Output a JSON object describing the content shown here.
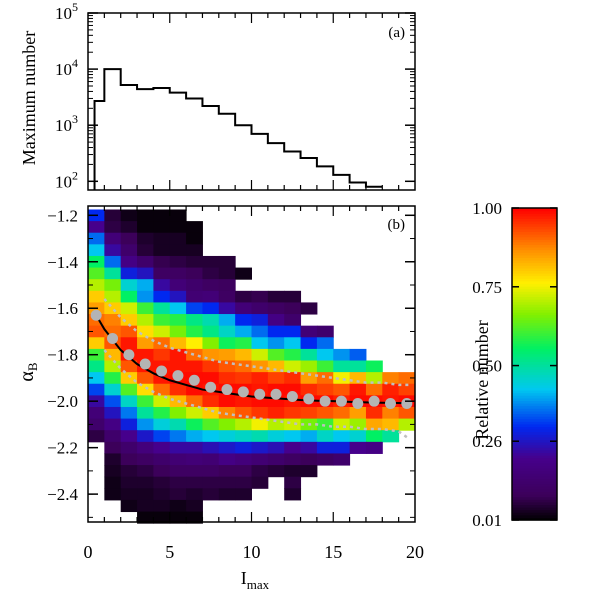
{
  "chart_data": [
    {
      "panel": "(a)",
      "type": "histogram",
      "ylabel": "Maximum number",
      "yscale": "log",
      "ylim": [
        70,
        100000
      ],
      "xlim": [
        0,
        20
      ],
      "yticks": [
        {
          "value": 100,
          "base": "10",
          "exp": "2"
        },
        {
          "value": 1000,
          "base": "10",
          "exp": "3"
        },
        {
          "value": 10000,
          "base": "10",
          "exp": "4"
        },
        {
          "value": 100000,
          "base": "10",
          "exp": "5"
        }
      ],
      "bin_edges": [
        0.4,
        1.0,
        2.0,
        3.0,
        4.0,
        5.0,
        6.0,
        7.0,
        8.0,
        9.0,
        10.0,
        11.0,
        12.0,
        13.0,
        14.0,
        15.0,
        16.0,
        17.0,
        18.0
      ],
      "values": [
        2700,
        10000,
        5200,
        4400,
        4600,
        3800,
        3000,
        2200,
        1600,
        1000,
        700,
        480,
        340,
        260,
        185,
        130,
        95,
        80
      ]
    },
    {
      "panel": "(b)",
      "type": "heatmap",
      "xlabel_main": "I",
      "xlabel_sub": "max",
      "ylabel_main": "α",
      "ylabel_sub": "B",
      "xlim": [
        0,
        20
      ],
      "ylim": [
        -2.52,
        -1.16
      ],
      "xticks": [
        0,
        5,
        10,
        15,
        20
      ],
      "yticks": [
        -1.2,
        -1.4,
        -1.6,
        -1.8,
        -2.0,
        -2.2,
        -2.4
      ],
      "x_centers": [
        0.5,
        1.5,
        2.5,
        3.5,
        4.5,
        5.5,
        6.5,
        7.5,
        8.5,
        9.5,
        10.5,
        11.5,
        12.5,
        13.5,
        14.5,
        15.5,
        16.5,
        17.5,
        18.5,
        19.5
      ],
      "y_centers": [
        -1.2,
        -1.25,
        -1.3,
        -1.35,
        -1.4,
        -1.45,
        -1.5,
        -1.55,
        -1.6,
        -1.65,
        -1.7,
        -1.75,
        -1.8,
        -1.85,
        -1.9,
        -1.95,
        -2.0,
        -2.05,
        -2.1,
        -2.15,
        -2.2,
        -2.25,
        -2.3,
        -2.35,
        -2.4,
        -2.45,
        -2.5
      ],
      "z": [
        [
          0.3,
          0.05,
          0.02,
          0.01,
          0.01,
          0.01,
          null,
          null,
          null,
          null,
          null,
          null,
          null,
          null,
          null,
          null,
          null,
          null,
          null,
          null
        ],
        [
          0.2,
          0.06,
          0.04,
          0.01,
          0.01,
          0.01,
          0.01,
          null,
          null,
          null,
          null,
          null,
          null,
          null,
          null,
          null,
          null,
          null,
          null,
          null
        ],
        [
          0.35,
          0.15,
          0.08,
          0.04,
          0.03,
          0.03,
          0.01,
          null,
          null,
          null,
          null,
          null,
          null,
          null,
          null,
          null,
          null,
          null,
          null,
          null
        ],
        [
          0.42,
          0.22,
          0.12,
          0.05,
          0.03,
          0.03,
          0.03,
          null,
          null,
          null,
          null,
          null,
          null,
          null,
          null,
          null,
          null,
          null,
          null,
          null
        ],
        [
          0.55,
          0.35,
          0.18,
          0.12,
          0.07,
          0.06,
          0.05,
          0.05,
          0.05,
          null,
          null,
          null,
          null,
          null,
          null,
          null,
          null,
          null,
          null,
          null
        ],
        [
          0.62,
          0.5,
          0.28,
          0.25,
          0.1,
          0.1,
          0.08,
          0.06,
          0.05,
          0.02,
          null,
          null,
          null,
          null,
          null,
          null,
          null,
          null,
          null,
          null
        ],
        [
          0.7,
          0.65,
          0.45,
          0.4,
          0.22,
          0.15,
          0.12,
          0.1,
          0.09,
          null,
          null,
          null,
          null,
          null,
          null,
          null,
          null,
          null,
          null,
          null
        ],
        [
          0.8,
          0.7,
          0.55,
          0.38,
          0.3,
          0.25,
          0.14,
          0.15,
          0.1,
          0.06,
          0.07,
          0.05,
          0.05,
          null,
          null,
          null,
          null,
          null,
          null,
          null
        ],
        [
          0.85,
          0.8,
          0.72,
          0.6,
          0.5,
          0.42,
          0.32,
          0.3,
          0.22,
          0.15,
          0.12,
          0.1,
          0.08,
          0.06,
          null,
          null,
          null,
          null,
          null,
          null
        ],
        [
          0.9,
          0.88,
          0.8,
          0.7,
          0.6,
          0.58,
          0.52,
          0.48,
          0.4,
          0.3,
          0.28,
          0.18,
          0.12,
          null,
          null,
          null,
          null,
          null,
          null,
          null
        ],
        [
          0.92,
          0.9,
          0.92,
          0.78,
          0.72,
          0.65,
          0.58,
          0.52,
          0.46,
          0.4,
          0.35,
          0.3,
          0.3,
          0.15,
          0.12,
          null,
          null,
          null,
          null,
          null
        ],
        [
          0.8,
          0.92,
          0.98,
          0.85,
          0.9,
          0.82,
          0.76,
          0.66,
          0.56,
          0.58,
          0.42,
          0.38,
          0.42,
          0.3,
          0.35,
          null,
          null,
          null,
          null,
          null
        ],
        [
          0.6,
          0.82,
          0.98,
          0.98,
          0.95,
          0.98,
          0.9,
          0.86,
          0.85,
          0.82,
          0.72,
          0.62,
          0.58,
          0.5,
          0.42,
          0.38,
          0.34,
          null,
          null,
          null
        ],
        [
          0.52,
          0.7,
          0.92,
          0.98,
          0.98,
          0.98,
          0.98,
          0.95,
          0.92,
          0.9,
          0.86,
          0.82,
          0.72,
          0.68,
          0.6,
          0.5,
          0.5,
          0.56,
          null,
          null
        ],
        [
          0.42,
          0.58,
          0.8,
          0.92,
          0.98,
          0.99,
          0.99,
          0.99,
          0.96,
          0.95,
          0.97,
          0.94,
          0.96,
          0.85,
          0.9,
          0.75,
          0.82,
          0.7,
          0.88,
          0.9
        ],
        [
          0.32,
          0.45,
          0.62,
          0.78,
          0.9,
          0.96,
          0.99,
          0.98,
          0.99,
          0.99,
          0.98,
          0.99,
          0.99,
          0.96,
          0.94,
          0.92,
          0.98,
          0.9,
          0.97,
          0.94
        ],
        [
          0.22,
          0.33,
          0.46,
          0.6,
          0.72,
          0.82,
          0.9,
          0.96,
          0.99,
          0.98,
          0.99,
          0.99,
          0.98,
          0.99,
          0.99,
          0.97,
          0.99,
          0.99,
          0.98,
          0.99
        ],
        [
          0.15,
          0.25,
          0.36,
          0.5,
          0.58,
          0.66,
          0.72,
          0.8,
          0.88,
          0.92,
          0.95,
          0.97,
          0.95,
          0.94,
          0.92,
          0.9,
          0.85,
          0.96,
          0.88,
          0.92
        ],
        [
          0.12,
          0.18,
          0.28,
          0.38,
          0.44,
          0.48,
          0.56,
          0.62,
          0.66,
          0.7,
          0.75,
          0.7,
          0.72,
          0.65,
          0.6,
          0.72,
          0.68,
          0.84,
          0.82,
          0.7
        ],
        [
          0.06,
          0.12,
          0.2,
          0.26,
          0.32,
          0.36,
          0.4,
          0.42,
          0.44,
          0.46,
          0.48,
          0.44,
          0.42,
          0.4,
          0.46,
          0.42,
          0.45,
          0.55,
          0.5,
          null
        ],
        [
          null,
          0.08,
          0.12,
          0.16,
          0.2,
          0.22,
          0.22,
          0.24,
          0.26,
          0.28,
          0.26,
          0.24,
          0.2,
          0.22,
          0.28,
          0.28,
          0.2,
          0.18,
          null,
          null
        ],
        [
          null,
          0.04,
          0.08,
          0.1,
          0.12,
          0.14,
          0.15,
          0.14,
          0.18,
          0.16,
          0.14,
          0.12,
          0.1,
          0.08,
          0.1,
          0.12,
          null,
          null,
          null,
          null
        ],
        [
          null,
          0.03,
          0.05,
          0.06,
          0.08,
          0.1,
          0.1,
          0.1,
          0.08,
          0.08,
          0.06,
          0.05,
          0.04,
          0.04,
          null,
          null,
          null,
          null,
          null,
          null
        ],
        [
          null,
          0.02,
          0.04,
          0.04,
          0.05,
          0.06,
          0.06,
          0.06,
          0.06,
          0.06,
          0.05,
          null,
          0.06,
          null,
          null,
          null,
          null,
          null,
          null,
          null
        ],
        [
          null,
          0.02,
          0.03,
          0.03,
          0.04,
          0.05,
          0.04,
          0.05,
          0.04,
          0.04,
          null,
          null,
          0.04,
          null,
          null,
          null,
          null,
          null,
          null,
          null
        ],
        [
          null,
          null,
          0.02,
          0.03,
          0.03,
          0.02,
          0.03,
          null,
          null,
          null,
          null,
          null,
          null,
          null,
          null,
          null,
          null,
          null,
          null,
          null
        ],
        [
          null,
          null,
          null,
          0.01,
          0.01,
          0.01,
          0.01,
          null,
          null,
          null,
          null,
          null,
          null,
          null,
          null,
          null,
          null,
          null,
          null,
          null
        ]
      ],
      "series": [
        {
          "kind": "fit-line",
          "color": "#000000",
          "x": [
            0.5,
            1,
            2,
            3,
            4,
            5,
            6,
            7,
            8,
            9,
            10,
            11,
            12,
            13,
            14,
            15,
            16,
            17,
            18,
            19,
            19.6
          ],
          "y": [
            -1.63,
            -1.69,
            -1.78,
            -1.84,
            -1.88,
            -1.91,
            -1.93,
            -1.95,
            -1.96,
            -1.97,
            -1.98,
            -1.985,
            -1.99,
            -1.995,
            -1.998,
            -2.0,
            -2.003,
            -2.005,
            -2.007,
            -2.008,
            -2.009
          ]
        },
        {
          "kind": "mean-points",
          "color": "#b4b4b4",
          "x": [
            0.5,
            1.5,
            2.5,
            3.5,
            4.5,
            5.5,
            6.5,
            7.5,
            8.5,
            9.5,
            10.5,
            11.5,
            12.5,
            13.5,
            14.5,
            15.5,
            16.5,
            17.5,
            18.5,
            19.5
          ],
          "y": [
            -1.63,
            -1.73,
            -1.8,
            -1.84,
            -1.87,
            -1.89,
            -1.91,
            -1.94,
            -1.95,
            -1.96,
            -1.97,
            -1.97,
            -1.98,
            -1.99,
            -2.0,
            -2.0,
            -2.01,
            -2.0,
            -2.01,
            -2.01
          ]
        },
        {
          "kind": "upper-bound",
          "color": "#c0c0c0",
          "x": [
            1,
            2,
            3,
            4,
            5,
            6,
            7,
            8,
            9,
            10,
            11,
            12,
            13,
            14,
            15,
            16,
            17,
            18,
            19,
            19.6
          ],
          "y": [
            -1.56,
            -1.64,
            -1.7,
            -1.74,
            -1.77,
            -1.79,
            -1.81,
            -1.83,
            -1.84,
            -1.85,
            -1.86,
            -1.87,
            -1.88,
            -1.89,
            -1.9,
            -1.91,
            -1.92,
            -1.92,
            -1.93,
            -1.93
          ]
        },
        {
          "kind": "lower-bound",
          "color": "#c0c0c0",
          "x": [
            1,
            2,
            3,
            4,
            5,
            6,
            7,
            8,
            9,
            10,
            11,
            12,
            13,
            14,
            15,
            16,
            17,
            18,
            19,
            19.6
          ],
          "y": [
            -1.78,
            -1.86,
            -1.92,
            -1.96,
            -1.99,
            -2.01,
            -2.03,
            -2.05,
            -2.06,
            -2.07,
            -2.08,
            -2.09,
            -2.1,
            -2.1,
            -2.11,
            -2.11,
            -2.12,
            -2.12,
            -2.13,
            -2.16
          ]
        }
      ]
    },
    {
      "panel": "colorbar",
      "type": "colorbar",
      "label": "Relative number",
      "range": [
        0.01,
        1.0
      ],
      "ticks": [
        {
          "value": 1.0,
          "label": "1.00"
        },
        {
          "value": 0.75,
          "label": "0.75"
        },
        {
          "value": 0.5,
          "label": "0.50"
        },
        {
          "value": 0.26,
          "label": "0.26"
        },
        {
          "value": 0.01,
          "label": "0.01"
        }
      ]
    }
  ]
}
